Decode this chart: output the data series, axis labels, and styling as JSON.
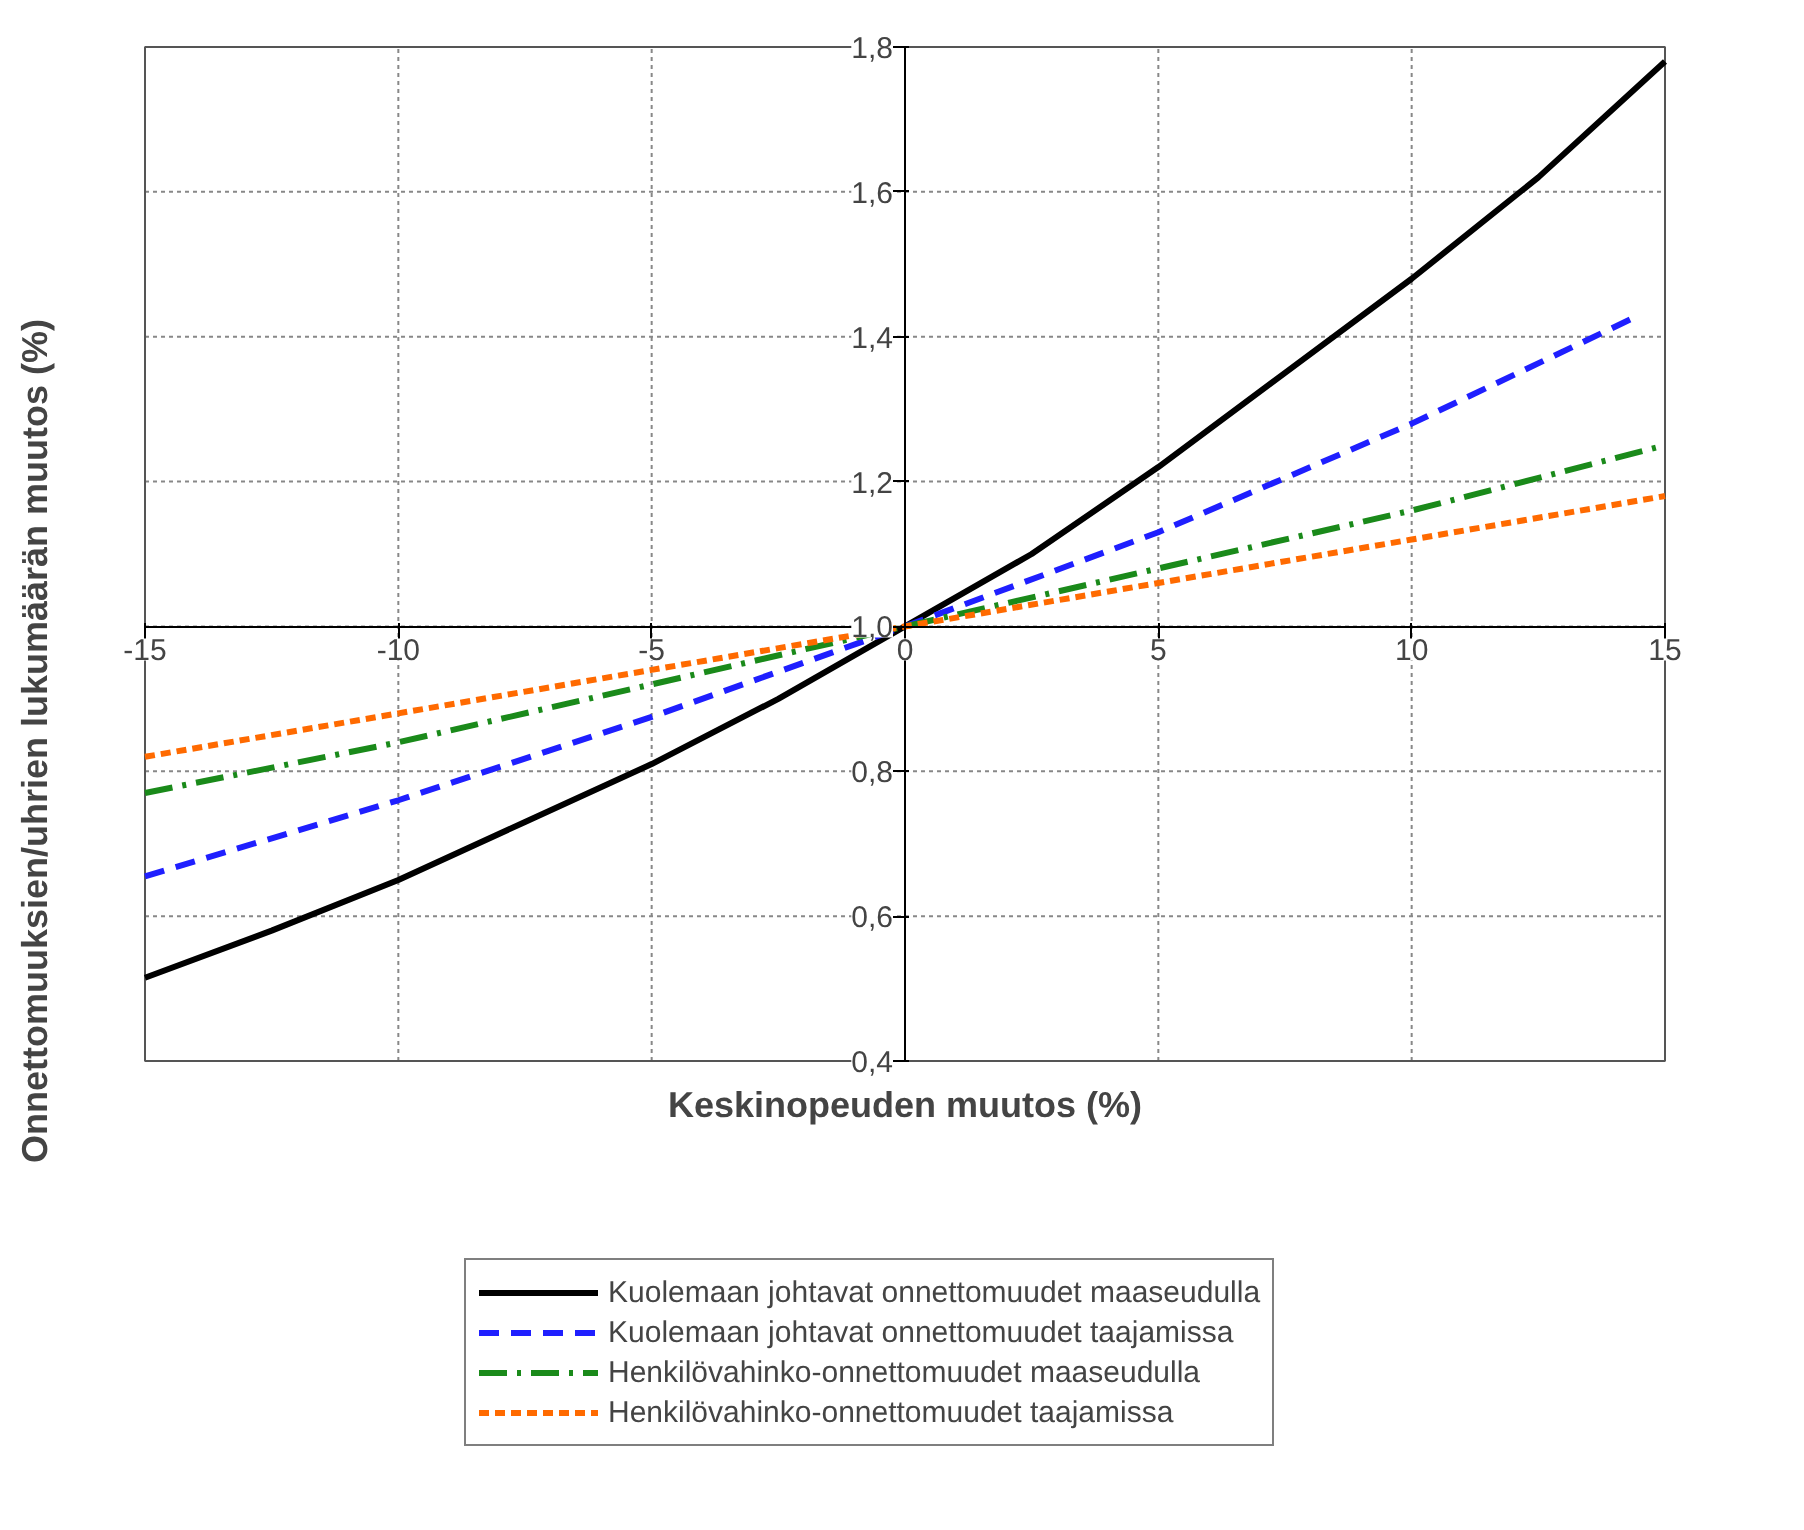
{
  "chart_data": {
    "type": "line",
    "xlabel": "Keskinopeuden muutos (%)",
    "ylabel": "Onnettomuuksien/uhrien lukumäärän muutos (%)",
    "xlim": [
      -15,
      15
    ],
    "xticks": [
      -15,
      -10,
      -5,
      0,
      5,
      10,
      15
    ],
    "ylim": [
      0.4,
      1.8
    ],
    "yticks": [
      {
        "value": 0.4,
        "label": "0,4"
      },
      {
        "value": 0.6,
        "label": "0,6"
      },
      {
        "value": 0.8,
        "label": "0,8"
      },
      {
        "value": 1.0,
        "label": "1,0"
      },
      {
        "value": 1.2,
        "label": "1,2"
      },
      {
        "value": 1.4,
        "label": "1,4"
      },
      {
        "value": 1.6,
        "label": "1,6"
      },
      {
        "value": 1.8,
        "label": "1,8"
      }
    ],
    "grid": true,
    "legend": "bottom",
    "marker": "none",
    "series": [
      {
        "name": "Kuolemaan johtavat onnettomuudet maaseudulla",
        "color": "#000000",
        "line_style": "solid",
        "x": [
          -15,
          -12.5,
          -10,
          -7.5,
          -5,
          -2.5,
          0,
          2.5,
          5,
          7.5,
          10,
          12.5,
          15
        ],
        "values": [
          0.515,
          0.58,
          0.65,
          0.73,
          0.81,
          0.9,
          1.0,
          1.1,
          1.22,
          1.35,
          1.48,
          1.62,
          1.78
        ]
      },
      {
        "name": "Kuolemaan johtavat onnettomuudet taajamissa",
        "color": "#1f1fff",
        "line_style": "dashed",
        "x": [
          -15,
          -10,
          -5,
          0,
          5,
          10,
          14.5
        ],
        "values": [
          0.655,
          0.76,
          0.875,
          1.0,
          1.13,
          1.28,
          1.43
        ]
      },
      {
        "name": "Henkilövahinko-onnettomuudet maaseudulla",
        "color": "#1a8a1a",
        "line_style": "dashdot",
        "x": [
          -15,
          -10,
          -5,
          0,
          5,
          10,
          15
        ],
        "values": [
          0.77,
          0.84,
          0.92,
          1.0,
          1.08,
          1.16,
          1.25
        ]
      },
      {
        "name": "Henkilövahinko-onnettomuudet taajamissa",
        "color": "#ff6a00",
        "line_style": "dotted",
        "x": [
          -15,
          -10,
          -5,
          0,
          5,
          10,
          15
        ],
        "values": [
          0.82,
          0.88,
          0.94,
          1.0,
          1.06,
          1.12,
          1.18
        ]
      }
    ]
  }
}
